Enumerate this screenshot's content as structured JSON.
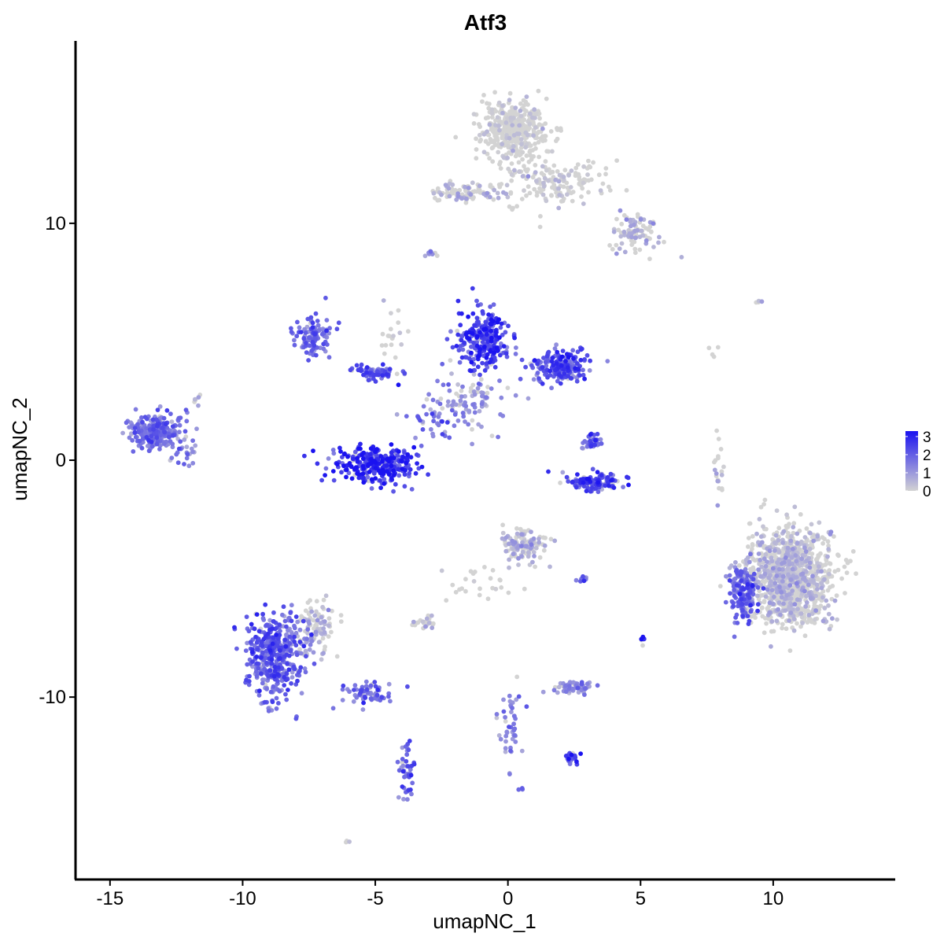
{
  "chart_data": {
    "type": "scatter",
    "title": "Atf3",
    "xlabel": "umapNC_1",
    "ylabel": "umapNC_2",
    "xlim": [
      -16.3,
      14.6
    ],
    "ylim": [
      -17.7,
      17.7
    ],
    "x_ticks": [
      -15,
      -10,
      -5,
      0,
      5,
      10
    ],
    "y_ticks": [
      -10,
      0,
      10
    ],
    "x_tick_labels": [
      "-15",
      "-10",
      "-5",
      "0",
      "5",
      "10"
    ],
    "y_tick_labels": [
      "-10",
      "0",
      "10"
    ],
    "color_scale": {
      "low": "#d3d3d3",
      "high": "#1a12f0",
      "min": 0,
      "max": 3.3,
      "legend_ticks": [
        0,
        1,
        2,
        3
      ],
      "legend_labels": [
        "0",
        "1",
        "2",
        "3"
      ],
      "legend_position": "right"
    },
    "clusters": [
      {
        "cx": 0.2,
        "cy": 14.0,
        "sx": 1.0,
        "sy": 1.0,
        "n": 420,
        "expr": 0.15
      },
      {
        "cx": 1.7,
        "cy": 11.7,
        "sx": 1.6,
        "sy": 0.8,
        "n": 160,
        "expr": 0.2
      },
      {
        "cx": 4.9,
        "cy": 9.6,
        "sx": 0.8,
        "sy": 0.7,
        "n": 90,
        "expr": 0.6
      },
      {
        "cx": -1.5,
        "cy": 11.3,
        "sx": 1.2,
        "sy": 0.4,
        "n": 90,
        "expr": 0.5
      },
      {
        "cx": -7.3,
        "cy": 5.2,
        "sx": 0.6,
        "sy": 0.7,
        "n": 110,
        "expr": 1.6
      },
      {
        "cx": -5.0,
        "cy": 3.7,
        "sx": 0.7,
        "sy": 0.3,
        "n": 70,
        "expr": 1.9
      },
      {
        "cx": -0.9,
        "cy": 5.0,
        "sx": 0.8,
        "sy": 1.0,
        "n": 260,
        "expr": 2.2
      },
      {
        "cx": 2.0,
        "cy": 4.0,
        "sx": 0.9,
        "sy": 0.6,
        "n": 200,
        "expr": 2.0
      },
      {
        "cx": -1.6,
        "cy": 2.5,
        "sx": 1.3,
        "sy": 1.0,
        "n": 100,
        "expr": 1.0
      },
      {
        "cx": -5.0,
        "cy": -0.2,
        "sx": 1.3,
        "sy": 0.6,
        "n": 320,
        "expr": 2.5
      },
      {
        "cx": 3.3,
        "cy": -0.9,
        "sx": 0.9,
        "sy": 0.3,
        "n": 120,
        "expr": 2.0
      },
      {
        "cx": 3.2,
        "cy": 0.8,
        "sx": 0.3,
        "sy": 0.4,
        "n": 35,
        "expr": 1.8
      },
      {
        "cx": -13.3,
        "cy": 1.2,
        "sx": 0.8,
        "sy": 0.6,
        "n": 250,
        "expr": 1.5
      },
      {
        "cx": -12.2,
        "cy": 0.3,
        "sx": 0.4,
        "sy": 0.5,
        "n": 25,
        "expr": 1.3
      },
      {
        "cx": 0.6,
        "cy": -3.6,
        "sx": 0.7,
        "sy": 0.6,
        "n": 130,
        "expr": 0.7
      },
      {
        "cx": -8.8,
        "cy": -8.2,
        "sx": 0.9,
        "sy": 1.4,
        "n": 430,
        "expr": 1.8
      },
      {
        "cx": -7.3,
        "cy": -7.2,
        "sx": 0.6,
        "sy": 0.9,
        "n": 100,
        "expr": 0.6
      },
      {
        "cx": -5.2,
        "cy": -9.8,
        "sx": 0.8,
        "sy": 0.4,
        "n": 70,
        "expr": 1.8
      },
      {
        "cx": -3.8,
        "cy": -13.2,
        "sx": 0.3,
        "sy": 1.2,
        "n": 45,
        "expr": 1.8
      },
      {
        "cx": 10.6,
        "cy": -4.9,
        "sx": 1.3,
        "sy": 1.6,
        "n": 1100,
        "expr": 0.45
      },
      {
        "cx": 8.9,
        "cy": -5.6,
        "sx": 0.5,
        "sy": 1.0,
        "n": 160,
        "expr": 1.7
      },
      {
        "cx": 2.5,
        "cy": -9.6,
        "sx": 0.6,
        "sy": 0.2,
        "n": 50,
        "expr": 1.2
      },
      {
        "cx": -3.2,
        "cy": -6.9,
        "sx": 0.4,
        "sy": 0.2,
        "n": 25,
        "expr": 0.5
      },
      {
        "cx": 2.4,
        "cy": -12.6,
        "sx": 0.3,
        "sy": 0.25,
        "n": 22,
        "expr": 2.2
      },
      {
        "cx": 0.1,
        "cy": -11.0,
        "sx": 0.4,
        "sy": 1.4,
        "n": 45,
        "expr": 1.3
      },
      {
        "cx": -1.0,
        "cy": -5.3,
        "sx": 1.0,
        "sy": 0.7,
        "n": 25,
        "expr": 0.1
      },
      {
        "cx": 7.9,
        "cy": -0.2,
        "sx": 0.2,
        "sy": 1.2,
        "n": 20,
        "expr": 0.6
      },
      {
        "cx": -4.4,
        "cy": 5.5,
        "sx": 0.4,
        "sy": 1.5,
        "n": 18,
        "expr": 0.3
      },
      {
        "cx": -3.0,
        "cy": 1.7,
        "sx": 0.9,
        "sy": 0.8,
        "n": 30,
        "expr": 1.6
      },
      {
        "cx": -2.9,
        "cy": 8.7,
        "sx": 0.2,
        "sy": 0.1,
        "n": 8,
        "expr": 1.0
      },
      {
        "cx": -11.7,
        "cy": 2.6,
        "sx": 0.2,
        "sy": 0.2,
        "n": 6,
        "expr": 0.8
      },
      {
        "cx": 5.1,
        "cy": -7.6,
        "sx": 0.06,
        "sy": 0.2,
        "n": 8,
        "expr": 3.0
      },
      {
        "cx": 2.8,
        "cy": -5.0,
        "sx": 0.2,
        "sy": 0.08,
        "n": 8,
        "expr": 1.5
      },
      {
        "cx": 0.5,
        "cy": -13.9,
        "sx": 0.08,
        "sy": 0.06,
        "n": 4,
        "expr": 1.5
      },
      {
        "cx": -6.1,
        "cy": -16.1,
        "sx": 0.1,
        "sy": 0.05,
        "n": 4,
        "expr": 0.5
      },
      {
        "cx": 9.5,
        "cy": 6.7,
        "sx": 0.3,
        "sy": 0.05,
        "n": 4,
        "expr": 0.1
      },
      {
        "cx": 7.7,
        "cy": 4.7,
        "sx": 0.15,
        "sy": 0.3,
        "n": 4,
        "expr": 0.1
      }
    ]
  }
}
